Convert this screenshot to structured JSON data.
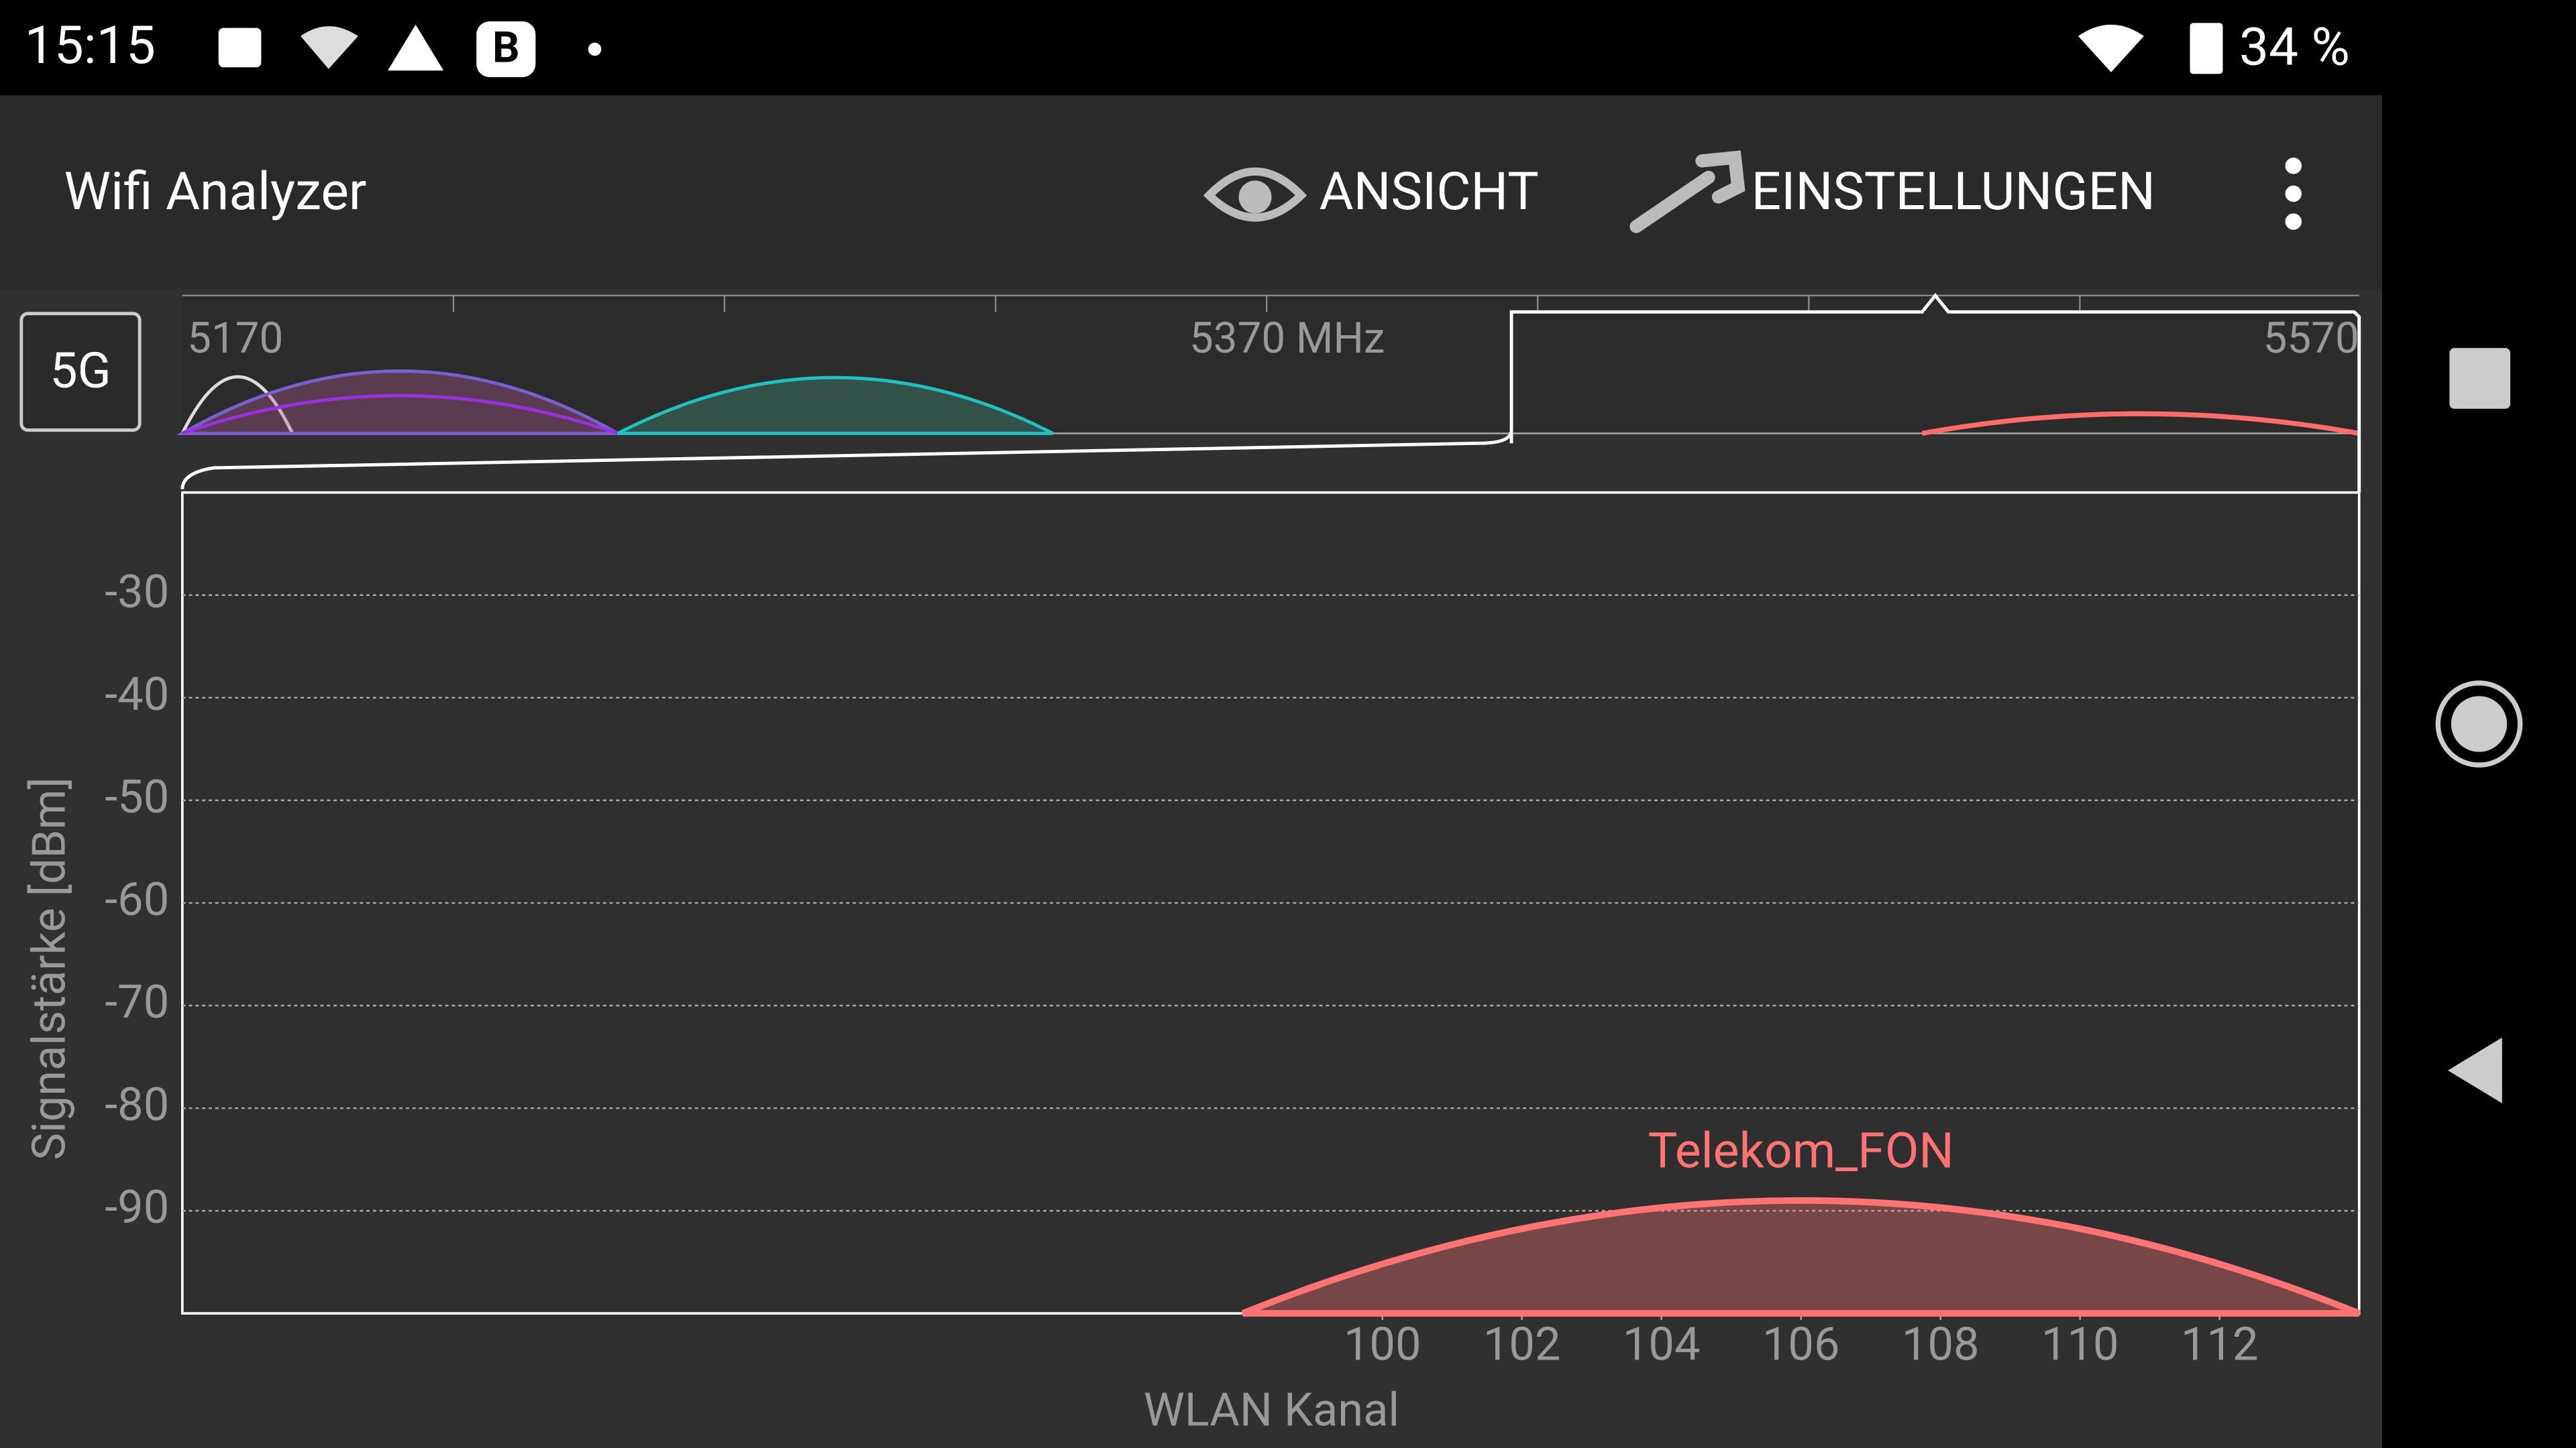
{
  "status_bar": {
    "time": "15:15",
    "battery": "34 %"
  },
  "app_bar": {
    "title": "Wifi Analyzer",
    "view": "ANSICHT",
    "settings": "EINSTELLUNGEN"
  },
  "band_button": "5G",
  "overview": {
    "freq_start": "5170",
    "freq_mid": "5370 MHz",
    "freq_end": "5570"
  },
  "chart_data": {
    "type": "wifi_channels",
    "y_label": "Signalstärke [dBm]",
    "x_label": "WLAN Kanal",
    "xlim": [
      82.8,
      114
    ],
    "ylim": [
      -100,
      -20
    ],
    "xticks": [
      100,
      102,
      104,
      106,
      108,
      110,
      112
    ],
    "yticks": [
      -30,
      -40,
      -50,
      -60,
      -70,
      -80,
      -90
    ],
    "grid": true,
    "networks": [
      {
        "name": "Telekom_FON",
        "color": "#ff7373",
        "start": 98,
        "center": 106,
        "end": 114,
        "level": -89
      }
    ]
  }
}
